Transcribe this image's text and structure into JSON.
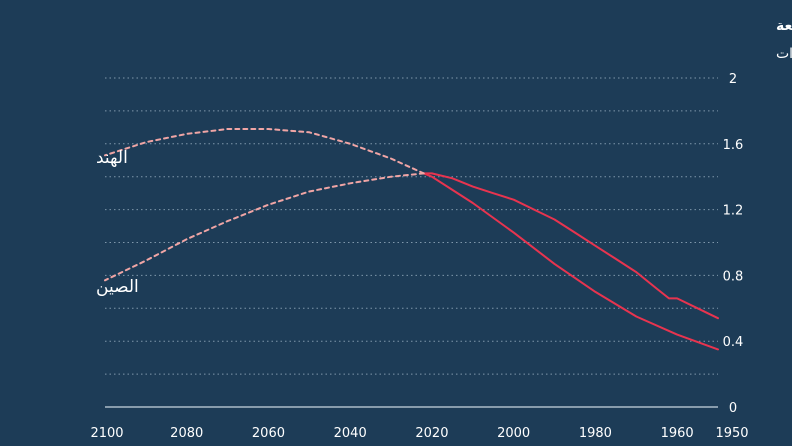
{
  "background_color": "#1d3c57",
  "title_cropped": "",
  "subtitle": "* البيانات التاريخية والمتوقعة",
  "unit_label": "بالمليارات",
  "colors": {
    "actual_line": "#e8344f",
    "projected_line": "#f0a5a5",
    "grid": "#7f97ab",
    "text": "#ffffff"
  },
  "chart_data": {
    "type": "line",
    "title": "",
    "subtitle": "* البيانات التاريخية والمتوقعة",
    "ylabel": "بالمليارات",
    "xlabel": "",
    "x_reversed": true,
    "xlim": [
      1950,
      2100
    ],
    "ylim": [
      0,
      2
    ],
    "x_ticks": [
      "1950",
      "1960",
      "1980",
      "2000",
      "2020",
      "2040",
      "2060",
      "2080",
      "2100"
    ],
    "y_ticks": [
      "0",
      "0.4",
      "0.8",
      "1.2",
      "1.6",
      "2"
    ],
    "grid": true,
    "series": [
      {
        "name": "الهند",
        "style": "actual",
        "points": [
          [
            1950,
            0.35
          ],
          [
            1960,
            0.44
          ],
          [
            1970,
            0.55
          ],
          [
            1980,
            0.7
          ],
          [
            1990,
            0.87
          ],
          [
            2000,
            1.06
          ],
          [
            2010,
            1.24
          ],
          [
            2015,
            1.32
          ],
          [
            2020,
            1.4
          ],
          [
            2022,
            1.42
          ]
        ]
      },
      {
        "name": "الهند",
        "style": "projected",
        "points": [
          [
            2022,
            1.42
          ],
          [
            2030,
            1.51
          ],
          [
            2040,
            1.6
          ],
          [
            2050,
            1.67
          ],
          [
            2060,
            1.69
          ],
          [
            2070,
            1.69
          ],
          [
            2080,
            1.66
          ],
          [
            2090,
            1.61
          ],
          [
            2100,
            1.53
          ]
        ]
      },
      {
        "name": "الصين",
        "style": "actual",
        "points": [
          [
            1950,
            0.54
          ],
          [
            1955,
            0.6
          ],
          [
            1960,
            0.66
          ],
          [
            1962,
            0.66
          ],
          [
            1965,
            0.72
          ],
          [
            1970,
            0.82
          ],
          [
            1975,
            0.9
          ],
          [
            1980,
            0.98
          ],
          [
            1985,
            1.06
          ],
          [
            1990,
            1.14
          ],
          [
            1995,
            1.2
          ],
          [
            2000,
            1.26
          ],
          [
            2005,
            1.3
          ],
          [
            2010,
            1.34
          ],
          [
            2015,
            1.39
          ],
          [
            2020,
            1.42
          ],
          [
            2022,
            1.42
          ]
        ]
      },
      {
        "name": "الصين",
        "style": "projected",
        "points": [
          [
            2022,
            1.42
          ],
          [
            2030,
            1.4
          ],
          [
            2040,
            1.36
          ],
          [
            2050,
            1.31
          ],
          [
            2060,
            1.23
          ],
          [
            2070,
            1.13
          ],
          [
            2080,
            1.02
          ],
          [
            2090,
            0.89
          ],
          [
            2100,
            0.77
          ]
        ]
      }
    ],
    "line_labels": [
      {
        "text": "الهند",
        "series": "India"
      },
      {
        "text": "الصين",
        "series": "China"
      }
    ]
  }
}
